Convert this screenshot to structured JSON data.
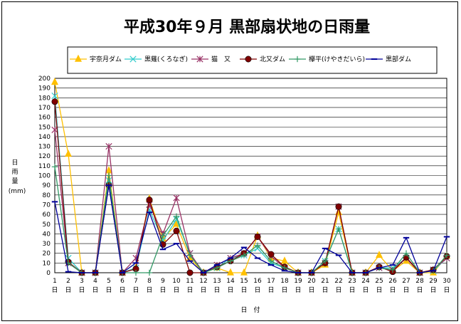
{
  "chart_data": {
    "type": "line",
    "title": "平成30年９月  黒部扇状地の日雨量",
    "ylabel_chars": [
      "日",
      "雨",
      "量"
    ],
    "ylabel_unit": "(mm)",
    "xlabel": "日　付",
    "ylim": [
      0,
      200
    ],
    "ytick_step": 10,
    "x_ticks": [
      "1",
      "2",
      "3",
      "4",
      "5",
      "6",
      "7",
      "8",
      "9",
      "10",
      "11",
      "12",
      "13",
      "14",
      "15",
      "16",
      "17",
      "18",
      "19",
      "20",
      "21",
      "22",
      "23",
      "24",
      "25",
      "26",
      "27",
      "28",
      "29",
      "30"
    ],
    "x_tick_suffix": "日",
    "grid": true,
    "legend_position": "top",
    "series": [
      {
        "name": "宇奈月ダム",
        "color": "#FFC000",
        "marker": "triangle",
        "values": [
          196,
          122,
          0,
          0,
          105,
          0,
          5,
          76,
          35,
          50,
          15,
          0,
          5,
          0,
          0,
          38,
          15,
          12,
          0,
          0,
          8,
          62,
          0,
          0,
          18,
          2,
          12,
          0,
          0,
          17
        ]
      },
      {
        "name": "黒薙(くろなぎ)",
        "color": "#33CCCC",
        "marker": "x",
        "values": [
          182,
          15,
          0,
          0,
          95,
          0,
          5,
          65,
          33,
          55,
          20,
          0,
          5,
          15,
          18,
          25,
          10,
          5,
          0,
          0,
          12,
          45,
          0,
          0,
          5,
          5,
          15,
          0,
          2,
          15
        ]
      },
      {
        "name": "猫　又",
        "color": "#993366",
        "marker": "star",
        "values": [
          147,
          10,
          0,
          0,
          130,
          0,
          15,
          70,
          40,
          77,
          20,
          0,
          8,
          15,
          20,
          37,
          17,
          5,
          0,
          0,
          10,
          68,
          0,
          0,
          5,
          3,
          15,
          0,
          3,
          15
        ]
      },
      {
        "name": "北又ダム",
        "color": "#800000",
        "marker": "circle",
        "values": [
          176,
          11,
          0,
          0,
          90,
          0,
          4,
          75,
          29,
          43,
          0,
          0,
          6,
          12,
          20,
          37,
          19,
          6,
          0,
          0,
          10,
          68,
          0,
          0,
          6,
          1,
          16,
          0,
          3,
          17
        ]
      },
      {
        "name": "欅平(けやきだいら)",
        "color": "#339966",
        "marker": "plus",
        "values": [
          109,
          10,
          0,
          0,
          100,
          0,
          0,
          0,
          38,
          58,
          18,
          0,
          5,
          12,
          18,
          28,
          12,
          5,
          0,
          0,
          12,
          45,
          0,
          0,
          5,
          3,
          20,
          0,
          2,
          18
        ]
      },
      {
        "name": "黒部ダム",
        "color": "#000099",
        "marker": "dash",
        "values": [
          73,
          1,
          0,
          0,
          90,
          0,
          10,
          62,
          24,
          30,
          12,
          0,
          8,
          15,
          26,
          15,
          8,
          2,
          0,
          0,
          25,
          18,
          0,
          0,
          5,
          8,
          36,
          0,
          2,
          37
        ]
      }
    ]
  }
}
